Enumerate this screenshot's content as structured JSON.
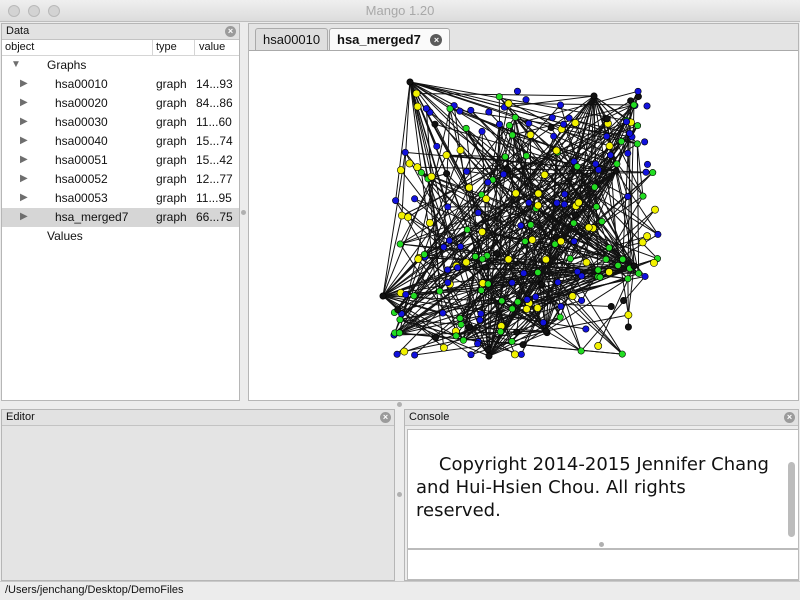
{
  "window": {
    "title": "Mango 1.20"
  },
  "data_panel": {
    "title": "Data",
    "columns": [
      "object",
      "type",
      "value"
    ],
    "root": "Graphs",
    "rows": [
      {
        "object": "hsa00010",
        "type": "graph",
        "value": "14...93"
      },
      {
        "object": "hsa00020",
        "type": "graph",
        "value": "84...86"
      },
      {
        "object": "hsa00030",
        "type": "graph",
        "value": "11...60"
      },
      {
        "object": "hsa00040",
        "type": "graph",
        "value": "15...74"
      },
      {
        "object": "hsa00051",
        "type": "graph",
        "value": "15...42"
      },
      {
        "object": "hsa00052",
        "type": "graph",
        "value": "12...77"
      },
      {
        "object": "hsa00053",
        "type": "graph",
        "value": "11...95"
      },
      {
        "object": "hsa_merged7",
        "type": "graph",
        "value": "66...75"
      }
    ],
    "values_label": "Values",
    "selected": "hsa_merged7"
  },
  "tabs": [
    {
      "label": "hsa00010",
      "active": false
    },
    {
      "label": "hsa_merged7",
      "active": true
    }
  ],
  "graph": {
    "node_colors": {
      "green": "#22dd22",
      "blue": "#1111dd",
      "yellow": "#f2f200",
      "black": "#111111"
    }
  },
  "editor": {
    "title": "Editor"
  },
  "console": {
    "title": "Console",
    "text": "Copyright 2014-2015 Jennifer Chang\nand Hui-Hsien Chou. All rights\nreserved."
  },
  "status": {
    "path": "/Users/jenchang/Desktop/DemoFiles"
  }
}
